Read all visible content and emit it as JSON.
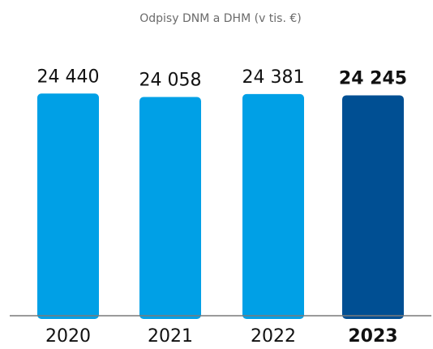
{
  "chart_data": {
    "type": "bar",
    "title": "Odpisy DNM a DHM (v tis. €)",
    "xlabel": "",
    "ylabel": "",
    "categories": [
      "2020",
      "2021",
      "2022",
      "2023"
    ],
    "values": [
      24440,
      24058,
      24381,
      24245
    ],
    "value_labels": [
      "24 440",
      "24 058",
      "24 381",
      "24 245"
    ],
    "ylim": [
      0,
      25000
    ],
    "grid": false,
    "legend": "none",
    "highlight_index": 3,
    "colors": {
      "bar": "#00a0e6",
      "highlight_bar": "#004f93",
      "baseline": "#7a7a7a",
      "text": "#111111",
      "title": "#6b6b6b"
    }
  }
}
